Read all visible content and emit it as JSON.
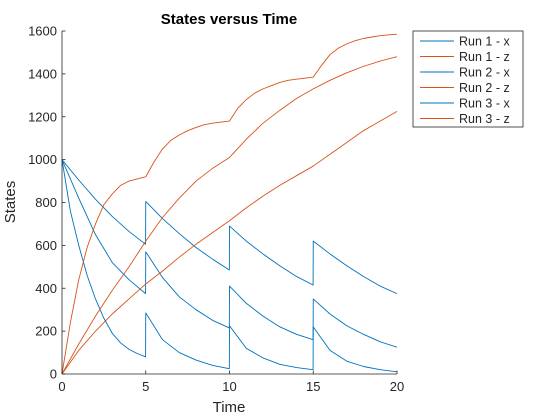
{
  "chart_data": {
    "type": "line",
    "title": "States versus Time",
    "xlabel": "Time",
    "ylabel": "States",
    "xlim": [
      0,
      20
    ],
    "ylim": [
      0,
      1600
    ],
    "xticks": [
      "0",
      "5",
      "10",
      "15",
      "20"
    ],
    "yticks": [
      "0",
      "200",
      "400",
      "600",
      "800",
      "1000",
      "1200",
      "1400",
      "1600"
    ],
    "grid": false,
    "legend_position": "outside-top-right",
    "series": [
      {
        "name": "Run 1 - x",
        "color": "#0072BD",
        "x": [
          0,
          1,
          2,
          3,
          4,
          4.99,
          5,
          6,
          7,
          8,
          9,
          9.99,
          10,
          11,
          12,
          13,
          14,
          14.99,
          15,
          16,
          17,
          18,
          19,
          20
        ],
        "y": [
          1000,
          905,
          815,
          735,
          665,
          605,
          805,
          725,
          655,
          590,
          535,
          485,
          690,
          620,
          560,
          505,
          455,
          415,
          620,
          560,
          505,
          455,
          410,
          375
        ]
      },
      {
        "name": "Run 1 - z",
        "color": "#D95319",
        "x": [
          0,
          1,
          2,
          3,
          4,
          5,
          6,
          7,
          8,
          9,
          10,
          11,
          12,
          13,
          14,
          15,
          16,
          17,
          18,
          19,
          20
        ],
        "y": [
          0,
          140,
          270,
          390,
          500,
          620,
          730,
          820,
          900,
          960,
          1010,
          1095,
          1170,
          1230,
          1285,
          1330,
          1370,
          1405,
          1435,
          1460,
          1480
        ]
      },
      {
        "name": "Run 2 - x",
        "color": "#0072BD",
        "x": [
          0,
          1,
          2,
          3,
          4,
          4.99,
          5,
          6,
          7,
          8,
          9,
          9.99,
          10,
          11,
          12,
          13,
          14,
          14.99,
          15,
          16,
          17,
          18,
          19,
          20
        ],
        "y": [
          1000,
          820,
          650,
          520,
          440,
          375,
          570,
          450,
          360,
          300,
          250,
          215,
          410,
          330,
          270,
          220,
          185,
          160,
          350,
          280,
          225,
          185,
          150,
          125
        ]
      },
      {
        "name": "Run 2 - z",
        "color": "#D95319",
        "x": [
          0,
          1,
          2,
          3,
          4,
          5,
          6,
          7,
          8,
          9,
          10,
          11,
          12,
          13,
          14,
          15,
          16,
          17,
          18,
          19,
          20
        ],
        "y": [
          0,
          110,
          200,
          280,
          350,
          420,
          480,
          545,
          605,
          660,
          715,
          775,
          830,
          880,
          925,
          970,
          1025,
          1080,
          1135,
          1180,
          1225
        ]
      },
      {
        "name": "Run 3 - x",
        "color": "#0072BD",
        "x": [
          0,
          0.5,
          1,
          1.5,
          2,
          2.5,
          3,
          3.5,
          4,
          4.5,
          4.99,
          5,
          6,
          7,
          8,
          9,
          9.99,
          10,
          11,
          12,
          13,
          14,
          14.99,
          15,
          16,
          17,
          18,
          19,
          20
        ],
        "y": [
          1000,
          760,
          600,
          460,
          350,
          260,
          190,
          145,
          115,
          95,
          80,
          285,
          160,
          100,
          65,
          40,
          25,
          225,
          120,
          75,
          45,
          30,
          20,
          220,
          110,
          60,
          35,
          20,
          10
        ]
      },
      {
        "name": "Run 3 - z",
        "color": "#D95319",
        "x": [
          0,
          0.5,
          1,
          1.5,
          2,
          2.5,
          3,
          3.5,
          4,
          4.5,
          5,
          5.5,
          6,
          6.5,
          7,
          7.5,
          8,
          8.5,
          9,
          9.5,
          10,
          10.5,
          11,
          11.5,
          12,
          12.5,
          13,
          13.5,
          14,
          14.5,
          15,
          15.5,
          16,
          16.5,
          17,
          17.5,
          18,
          18.5,
          19,
          19.5,
          20
        ],
        "y": [
          0,
          240,
          440,
          590,
          700,
          790,
          840,
          880,
          900,
          910,
          920,
          990,
          1050,
          1090,
          1115,
          1135,
          1150,
          1163,
          1170,
          1175,
          1180,
          1240,
          1280,
          1310,
          1330,
          1345,
          1360,
          1370,
          1375,
          1380,
          1385,
          1440,
          1490,
          1520,
          1540,
          1555,
          1565,
          1572,
          1578,
          1582,
          1585
        ]
      }
    ]
  }
}
